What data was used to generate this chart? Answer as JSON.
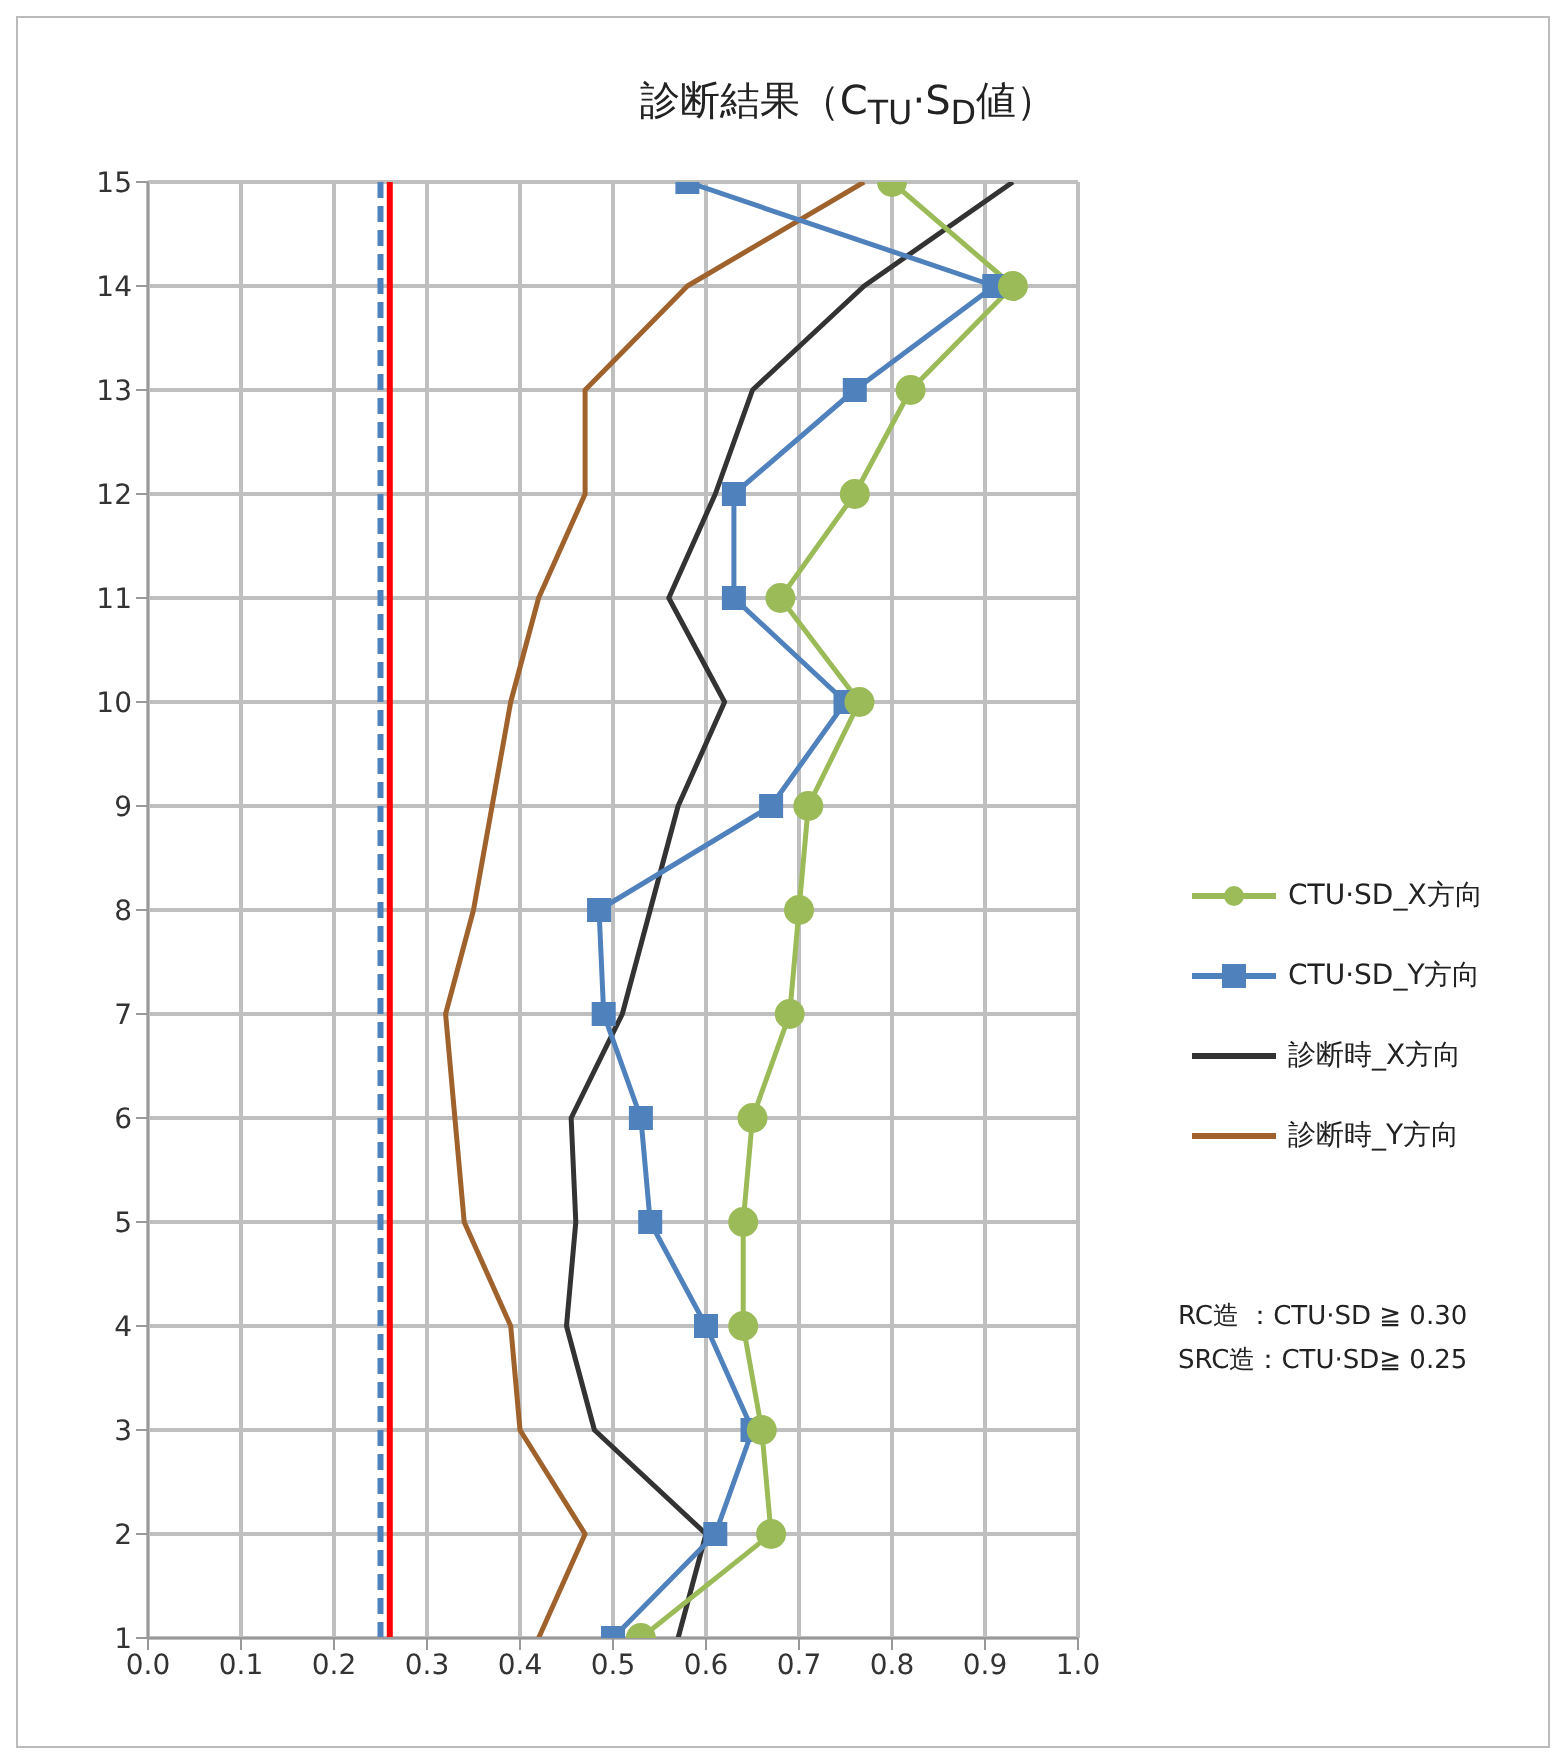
{
  "chart_data": {
    "type": "line",
    "title": "診断結果（C$_{TU}$·S$_{D}$値）",
    "xlim": [
      0,
      1
    ],
    "xticks": [
      {
        "value": 0,
        "label": "0.0"
      },
      0.1,
      0.2,
      0.3,
      0.4,
      0.5,
      0.6,
      0.7,
      0.8,
      0.9,
      {
        "value": 1,
        "label": "1.0"
      }
    ],
    "ylim": [
      1,
      15
    ],
    "yticks": [
      1,
      2,
      3,
      4,
      5,
      6,
      7,
      8,
      9,
      10,
      11,
      12,
      13,
      14,
      15
    ],
    "grid": true,
    "legend": "right",
    "series": [
      {
        "name": "CTU·SD_X方向",
        "color": "#9bbb59",
        "marker": "circle",
        "x": [
          0.53,
          0.67,
          0.66,
          0.64,
          0.64,
          0.65,
          0.69,
          0.7,
          0.71,
          0.765,
          0.68,
          0.76,
          0.82,
          0.93,
          0.8
        ],
        "values": [
          1,
          2,
          3,
          4,
          5,
          6,
          7,
          8,
          9,
          10,
          11,
          12,
          13,
          14,
          15
        ]
      },
      {
        "name": "CTU·SD_Y方向",
        "color": "#4f81bd",
        "marker": "square",
        "x": [
          0.5,
          0.61,
          0.65,
          0.6,
          0.54,
          0.53,
          0.49,
          0.485,
          0.67,
          0.75,
          0.63,
          0.63,
          0.76,
          0.91,
          0.58
        ],
        "values": [
          1,
          2,
          3,
          4,
          5,
          6,
          7,
          8,
          9,
          10,
          11,
          12,
          13,
          14,
          15
        ]
      },
      {
        "name": "診断時_X方向",
        "color": "#333333",
        "marker": "none",
        "x": [
          0.57,
          0.6,
          0.48,
          0.45,
          0.46,
          0.455,
          0.51,
          0.54,
          0.57,
          0.62,
          0.56,
          0.61,
          0.65,
          0.77,
          0.93
        ],
        "values": [
          1,
          2,
          3,
          4,
          5,
          6,
          7,
          8,
          9,
          10,
          11,
          12,
          13,
          14,
          15
        ]
      },
      {
        "name": "診断時_Y方向",
        "color": "#a0622d",
        "marker": "none",
        "x": [
          0.42,
          0.47,
          0.4,
          0.39,
          0.34,
          0.33,
          0.32,
          0.35,
          0.37,
          0.39,
          0.42,
          0.47,
          0.47,
          0.58,
          0.77
        ],
        "values": [
          1,
          2,
          3,
          4,
          5,
          6,
          7,
          8,
          9,
          10,
          11,
          12,
          13,
          14,
          15
        ]
      }
    ],
    "ref_lines": [
      {
        "axis": "x",
        "value": 0.25,
        "color": "#4f81bd",
        "line_style": "dashed"
      },
      {
        "axis": "x",
        "value": 0.26,
        "color": "#ff0000",
        "line_style": "solid"
      }
    ],
    "annotations": [
      "RC造 ：CTU·SD ≧ 0.30",
      "SRC造：CTU·SD≧ 0.25"
    ]
  }
}
